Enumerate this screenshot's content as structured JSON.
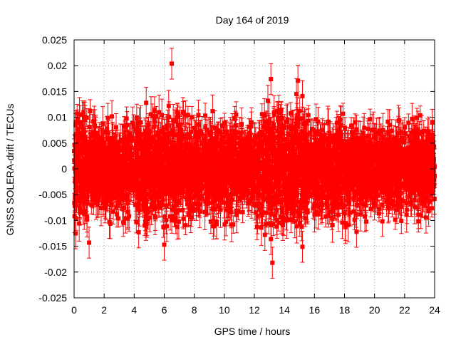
{
  "chart_data": {
    "type": "scatter",
    "title": "Day 164 of 2019",
    "xlabel": "GPS time / hours",
    "ylabel": "GNSS SOLERA-drift / TECUs",
    "xlim": [
      0,
      24
    ],
    "ylim": [
      -0.025,
      0.025
    ],
    "grid": true,
    "error_bars": true,
    "x_ticks": [
      0,
      2,
      4,
      6,
      8,
      10,
      12,
      14,
      16,
      18,
      20,
      22,
      24
    ],
    "x_tick_labels": [
      "0",
      "2",
      "4",
      "6",
      "8",
      "10",
      "12",
      "14",
      "16",
      "18",
      "20",
      "22",
      "24"
    ],
    "y_ticks": [
      -0.025,
      -0.02,
      -0.015,
      -0.01,
      -0.005,
      0,
      0.005,
      0.01,
      0.015,
      0.02,
      0.025
    ],
    "y_tick_labels": [
      "-0.025",
      "-0.02",
      "-0.015",
      "-0.01",
      "-0.005",
      "0",
      "0.005",
      "0.01",
      "0.015",
      "0.02",
      "0.025"
    ],
    "series": [
      {
        "name": "SOLERA drift",
        "color": "#ff0000",
        "n_points_approx": 4000,
        "typical_spread": 0.004,
        "typical_error": 0.0025,
        "notable_points": [
          {
            "x": 6.5,
            "y": 0.0204
          },
          {
            "x": 13.1,
            "y": 0.0174
          },
          {
            "x": 14.9,
            "y": 0.0171
          },
          {
            "x": 15.2,
            "y": 0.0141
          },
          {
            "x": 14.8,
            "y": 0.0145
          },
          {
            "x": 12.9,
            "y": 0.0132
          },
          {
            "x": 4.8,
            "y": 0.0128
          },
          {
            "x": 6.3,
            "y": 0.0122
          },
          {
            "x": 13.2,
            "y": -0.0182
          },
          {
            "x": 15.2,
            "y": -0.0151
          },
          {
            "x": 6.0,
            "y": -0.0147
          },
          {
            "x": 1.0,
            "y": -0.0143
          },
          {
            "x": 13.1,
            "y": -0.0136
          },
          {
            "x": 12.7,
            "y": -0.0128
          },
          {
            "x": 0.1,
            "y": -0.0125
          },
          {
            "x": 18.8,
            "y": -0.0122
          },
          {
            "x": 4.3,
            "y": -0.0123
          },
          {
            "x": 22.5,
            "y": 0.0097
          },
          {
            "x": 21.6,
            "y": 0.0093
          }
        ]
      }
    ]
  }
}
